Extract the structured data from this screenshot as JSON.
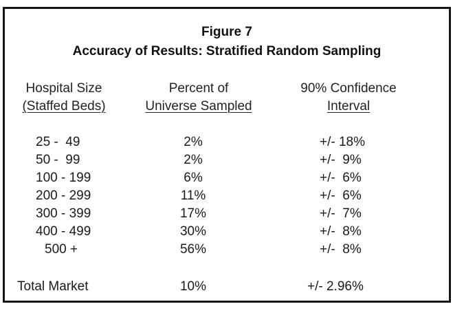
{
  "figure": {
    "title": "Figure 7",
    "subtitle": "Accuracy of Results: Stratified Random Sampling"
  },
  "headers": {
    "col1_line1": "Hospital Size",
    "col1_line2": "(Staffed Beds)",
    "col2_line1": "Percent of",
    "col2_line2": "Universe Sampled",
    "col3_line1": "90% Confidence",
    "col3_line2": "Interval"
  },
  "rows": [
    {
      "size": "25 -  49",
      "percent": "2%",
      "interval": "+/- 18%"
    },
    {
      "size": "50 -  99",
      "percent": "2%",
      "interval": "+/-  9%"
    },
    {
      "size": "100 - 199",
      "percent": "6%",
      "interval": "+/-  6%"
    },
    {
      "size": "200 - 299",
      "percent": "11%",
      "interval": "+/-  6%"
    },
    {
      "size": "300 - 399",
      "percent": "17%",
      "interval": "+/-  7%"
    },
    {
      "size": "400 - 499",
      "percent": "30%",
      "interval": "+/-  8%"
    },
    {
      "size": "500 +",
      "percent": "56%",
      "interval": "+/-  8%"
    }
  ],
  "total": {
    "label": "Total Market",
    "percent": "10%",
    "interval": "+/- 2.96%"
  }
}
